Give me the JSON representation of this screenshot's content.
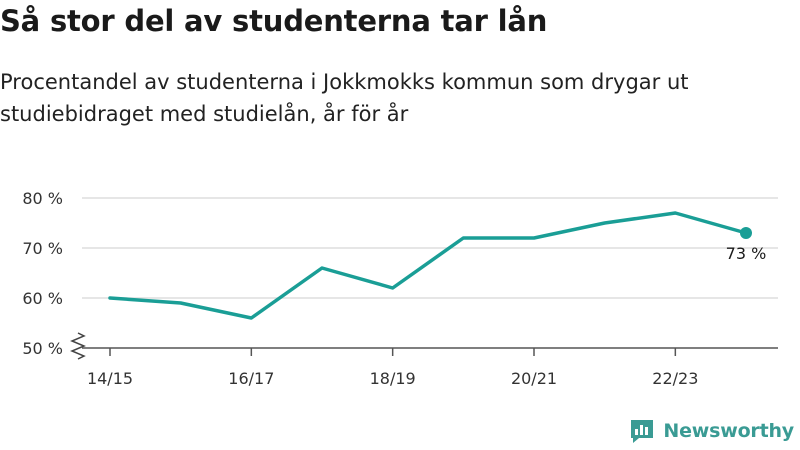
{
  "title": "Så stor del av studenterna tar lån",
  "subtitle": "Procentandel av studenterna i Jokkmokks kommun som drygar ut studiebidraget med studielån, år för år",
  "brand": {
    "name": "Newsworthy",
    "color": "#3a9b94",
    "icon": "bar-chart-logo-icon"
  },
  "colors": {
    "line": "#1a9e96",
    "grid": "#dddddd",
    "axis": "#555555"
  },
  "chart_data": {
    "type": "line",
    "x": [
      "14/15",
      "15/16",
      "16/17",
      "17/18",
      "18/19",
      "19/20",
      "20/21",
      "21/22",
      "22/23",
      "23/24"
    ],
    "x_tick_labels": [
      "14/15",
      "16/17",
      "18/19",
      "20/21",
      "22/23"
    ],
    "series": [
      {
        "values": [
          60,
          59,
          56,
          66,
          62,
          72,
          72,
          75,
          77,
          73
        ]
      }
    ],
    "y_ticks": [
      50,
      60,
      70,
      80
    ],
    "y_tick_labels": [
      "50 %",
      "60 %",
      "70 %",
      "80 %"
    ],
    "ylim": [
      50,
      80
    ],
    "y_axis_break": true,
    "grid": "horizontal",
    "end_label": "73 %",
    "xlabel": "",
    "ylabel": ""
  }
}
